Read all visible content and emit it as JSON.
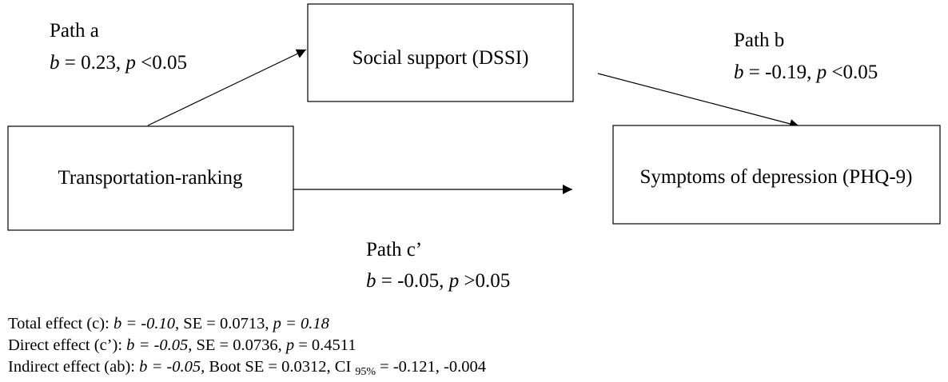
{
  "nodes": [
    {
      "label": "Social support (DSSI)"
    },
    {
      "label": "Transportation-ranking"
    },
    {
      "label": "Symptoms of depression (PHQ-9)"
    }
  ],
  "paths": [
    {
      "label": "Path a",
      "stat": [
        "b",
        " = 0.23, ",
        "p",
        " <0.05"
      ]
    },
    {
      "label": "Path b",
      "stat": [
        "b",
        " = -0.19, ",
        "p",
        " <0.05"
      ]
    },
    {
      "label": "Path c’",
      "stat": [
        "b",
        " = -0.05, ",
        "p",
        " >0.05"
      ]
    }
  ],
  "effects": [
    [
      "Total effect (c): ",
      "b = -0.10,",
      " SE = 0.0713, ",
      "p = 0.18"
    ],
    [
      "Direct effect (c’): ",
      "b = -0.05,",
      " SE = 0.0736, ",
      "p",
      " = 0.4511"
    ],
    [
      "Indirect effect (ab): ",
      "b = -0.05,",
      " Boot SE = 0.0312, CI ",
      "95%",
      " = -0.121, -0.004"
    ]
  ]
}
